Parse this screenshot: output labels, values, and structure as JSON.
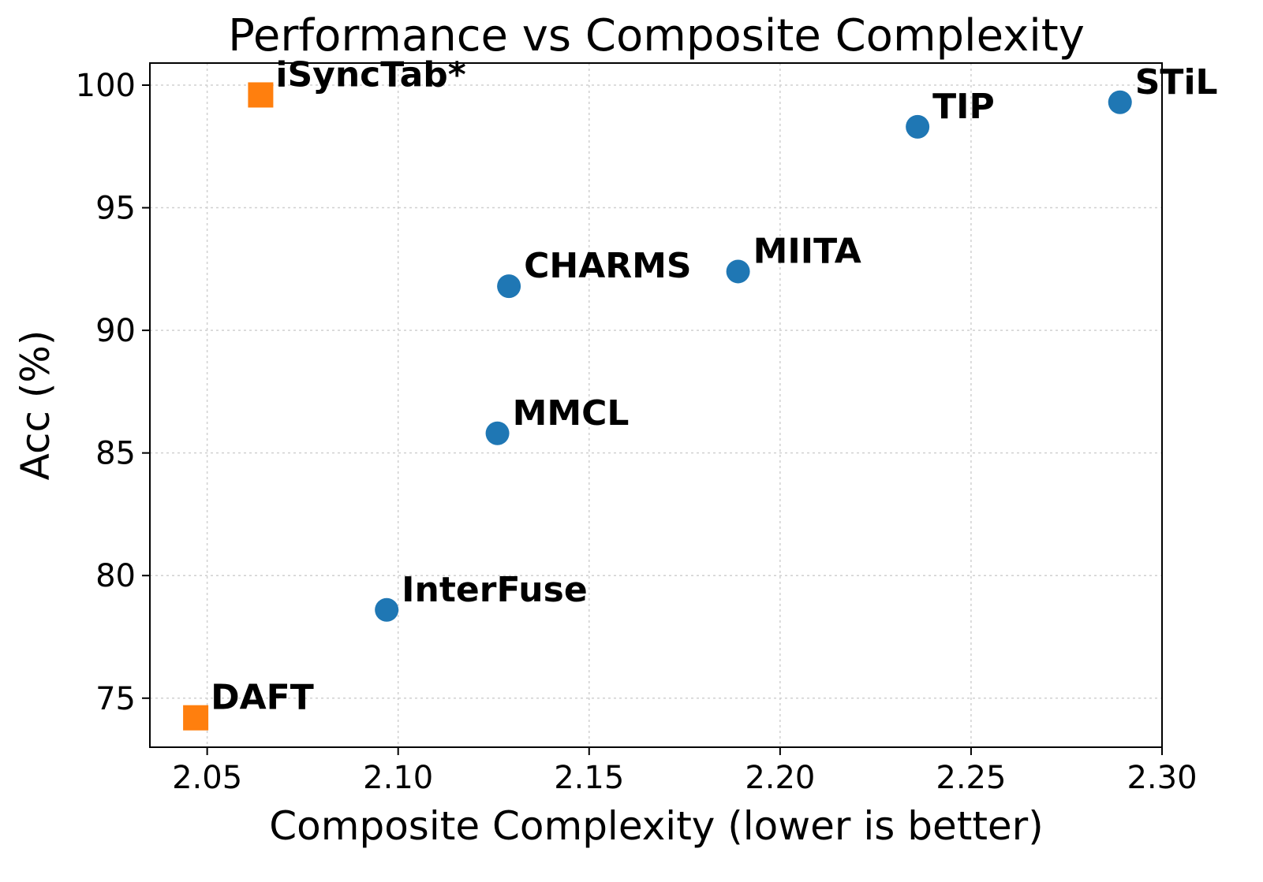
{
  "chart_data": {
    "type": "scatter",
    "title": "Performance vs Composite Complexity",
    "xlabel": "Composite Complexity (lower is better)",
    "ylabel": "Acc (%)",
    "xlim": [
      2.035,
      2.3
    ],
    "ylim": [
      73.0,
      100.9
    ],
    "xticks": [
      "2.05",
      "2.10",
      "2.15",
      "2.20",
      "2.25",
      "2.30"
    ],
    "yticks": [
      "75",
      "80",
      "85",
      "90",
      "95",
      "100"
    ],
    "grid": true,
    "points": [
      {
        "label": "iSyncTab*",
        "x": 2.064,
        "y": 99.6,
        "marker": "square",
        "color": "#ff7f0e"
      },
      {
        "label": "DAFT",
        "x": 2.047,
        "y": 74.2,
        "marker": "square",
        "color": "#ff7f0e"
      },
      {
        "label": "InterFuse",
        "x": 2.097,
        "y": 78.6,
        "marker": "circle",
        "color": "#1f77b4"
      },
      {
        "label": "MMCL",
        "x": 2.126,
        "y": 85.8,
        "marker": "circle",
        "color": "#1f77b4"
      },
      {
        "label": "CHARMS",
        "x": 2.129,
        "y": 91.8,
        "marker": "circle",
        "color": "#1f77b4"
      },
      {
        "label": "MIITA",
        "x": 2.189,
        "y": 92.4,
        "marker": "circle",
        "color": "#1f77b4"
      },
      {
        "label": "TIP",
        "x": 2.236,
        "y": 98.3,
        "marker": "circle",
        "color": "#1f77b4"
      },
      {
        "label": "STiL",
        "x": 2.289,
        "y": 99.3,
        "marker": "circle",
        "color": "#1f77b4"
      }
    ]
  }
}
